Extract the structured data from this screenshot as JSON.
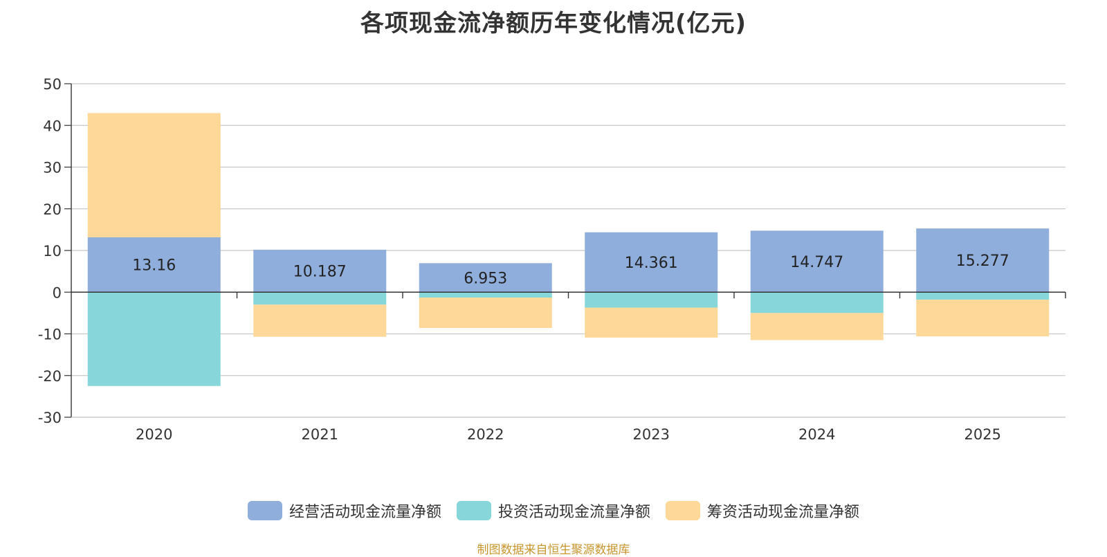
{
  "source_text": "制图数据来自恒生聚源数据库",
  "colors": {
    "operating": "#8faedc",
    "investing": "#87d6d9",
    "financing": "#fed898",
    "grid": "#c8c8c8",
    "axis": "#333333"
  },
  "chart_data": {
    "type": "bar",
    "stacked": true,
    "title": "各项现金流净额历年变化情况(亿元)",
    "xlabel": "",
    "ylabel": "",
    "ylim": [
      -30,
      50
    ],
    "yticks": [
      50,
      40,
      30,
      20,
      10,
      0,
      -10,
      -20,
      -30
    ],
    "categories": [
      "2020",
      "2021",
      "2022",
      "2023",
      "2024",
      "2025"
    ],
    "grid": true,
    "legend_position": "bottom",
    "series": [
      {
        "name": "经营活动现金流量净额",
        "key": "operating",
        "values": [
          13.16,
          10.187,
          6.953,
          14.361,
          14.747,
          15.277
        ],
        "show_labels": true
      },
      {
        "name": "投资活动现金流量净额",
        "key": "investing",
        "values": [
          -22.5,
          -3.0,
          -1.3,
          -3.7,
          -5.0,
          -1.8
        ]
      },
      {
        "name": "筹资活动现金流量净额",
        "key": "financing",
        "values": [
          29.8,
          -7.7,
          -7.3,
          -7.2,
          -6.5,
          -8.8
        ]
      }
    ]
  }
}
